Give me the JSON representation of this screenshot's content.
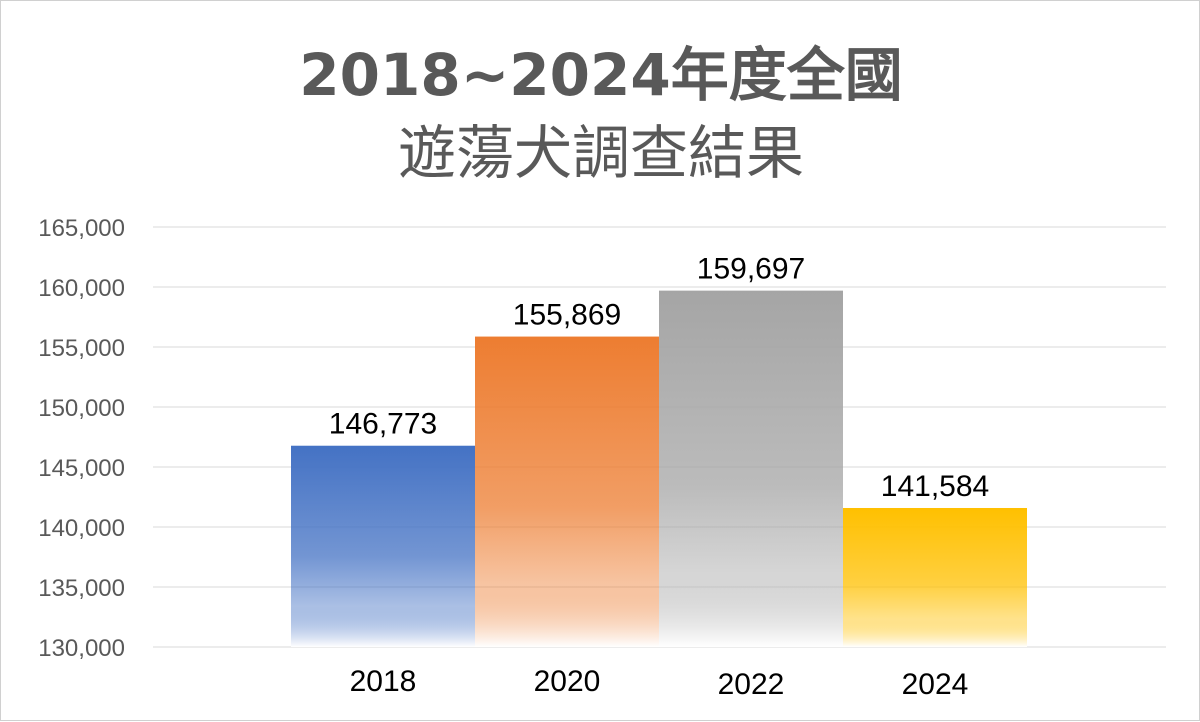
{
  "title": {
    "line1": "2018~2024年度全國",
    "line2": "遊蕩犬調查結果"
  },
  "colors": {
    "2018": "#4472c4",
    "2020": "#ed7d31",
    "2022": "#a5a5a5",
    "2024": "#ffc000",
    "gridline": "#e6e6e6",
    "title": "#595959"
  },
  "chart_data": {
    "type": "bar",
    "title": "2018~2024年度全國遊蕩犬調查結果",
    "categories": [
      "2018",
      "2020",
      "2022",
      "2024"
    ],
    "values": [
      146773,
      155869,
      159697,
      141584
    ],
    "value_labels": [
      "146,773",
      "155,869",
      "159,697",
      "141,584"
    ],
    "xlabel": "",
    "ylabel": "",
    "ylim": [
      130000,
      165000
    ],
    "y_ticks": [
      130000,
      135000,
      140000,
      145000,
      150000,
      155000,
      160000,
      165000
    ],
    "y_tick_labels": [
      "130,000",
      "135,000",
      "140,000",
      "145,000",
      "150,000",
      "155,000",
      "160,000",
      "165,000"
    ],
    "grid": true,
    "legend": "none",
    "bar_fill": "vertical gradient fading to white at the base"
  }
}
